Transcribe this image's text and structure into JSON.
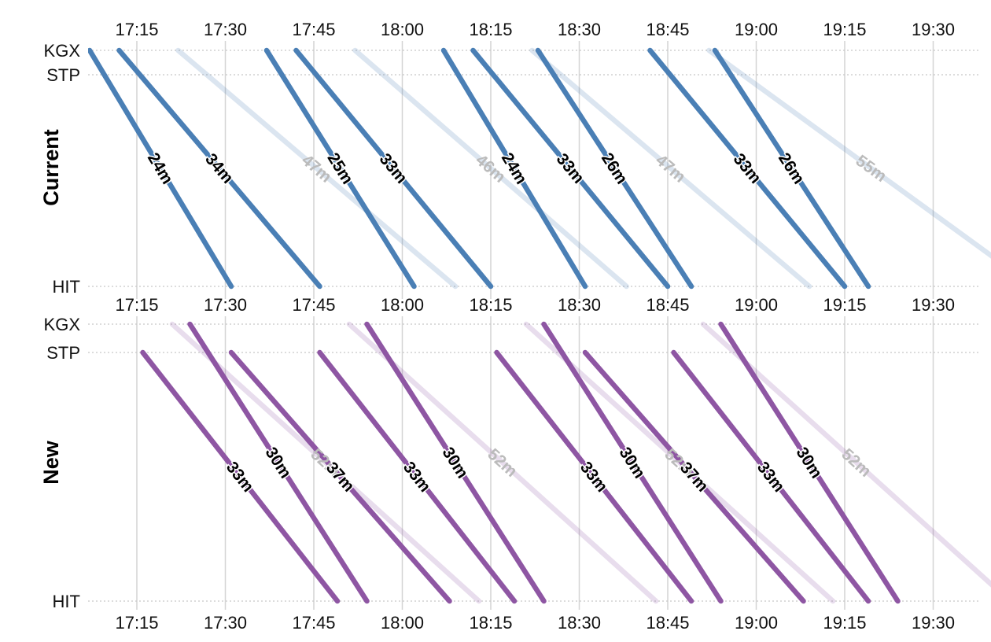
{
  "chart_data": [
    {
      "type": "line",
      "title": "Current",
      "color": "#4a7fb5",
      "label_color": "#000000",
      "faded_label_color": "#bbbbbb",
      "x_axis": {
        "ticks": [
          "17:15",
          "17:30",
          "17:45",
          "18:00",
          "18:15",
          "18:30",
          "18:45",
          "19:00",
          "19:15",
          "19:30"
        ],
        "range": [
          "17:07",
          "19:38"
        ],
        "grid": true
      },
      "stations": [
        "KGX",
        "STP",
        "HIT"
      ],
      "series": [
        {
          "depart": "17:07",
          "from": "KGX",
          "arrive": "17:31",
          "label": "24m",
          "faded": false
        },
        {
          "depart": "17:12",
          "from": "KGX",
          "arrive": "17:46",
          "label": "34m",
          "faded": false
        },
        {
          "depart": "17:22",
          "from": "KGX",
          "arrive": "18:09",
          "label": "47m",
          "faded": true
        },
        {
          "depart": "17:37",
          "from": "KGX",
          "arrive": "18:02",
          "label": "25m",
          "faded": false
        },
        {
          "depart": "17:42",
          "from": "KGX",
          "arrive": "18:15",
          "label": "33m",
          "faded": false
        },
        {
          "depart": "17:52",
          "from": "KGX",
          "arrive": "18:38",
          "label": "46m",
          "faded": true
        },
        {
          "depart": "18:07",
          "from": "KGX",
          "arrive": "18:31",
          "label": "24m",
          "faded": false
        },
        {
          "depart": "18:12",
          "from": "KGX",
          "arrive": "18:45",
          "label": "33m",
          "faded": false
        },
        {
          "depart": "18:23",
          "from": "KGX",
          "arrive": "18:49",
          "label": "26m",
          "faded": false
        },
        {
          "depart": "18:22",
          "from": "KGX",
          "arrive": "19:09",
          "label": "47m",
          "faded": true
        },
        {
          "depart": "18:42",
          "from": "KGX",
          "arrive": "19:15",
          "label": "33m",
          "faded": false
        },
        {
          "depart": "18:53",
          "from": "KGX",
          "arrive": "19:19",
          "label": "26m",
          "faded": false
        },
        {
          "depart": "18:52",
          "from": "KGX",
          "arrive": "19:47",
          "label": "55m",
          "faded": true
        }
      ]
    },
    {
      "type": "line",
      "title": "New",
      "color": "#8e56a3",
      "label_color": "#000000",
      "faded_label_color": "#bbbbbb",
      "x_axis": {
        "ticks": [
          "17:15",
          "17:30",
          "17:45",
          "18:00",
          "18:15",
          "18:30",
          "18:45",
          "19:00",
          "19:15",
          "19:30"
        ],
        "range": [
          "17:07",
          "19:38"
        ],
        "grid": true
      },
      "stations": [
        "KGX",
        "STP",
        "HIT"
      ],
      "series": [
        {
          "depart": "17:16",
          "from": "STP",
          "arrive": "17:49",
          "label": "33m",
          "faded": false
        },
        {
          "depart": "17:24",
          "from": "KGX",
          "arrive": "17:54",
          "label": "30m",
          "faded": false
        },
        {
          "depart": "17:21",
          "from": "KGX",
          "arrive": "18:13",
          "label": "52m",
          "faded": true
        },
        {
          "depart": "17:31",
          "from": "STP",
          "arrive": "18:08",
          "label": "37m",
          "faded": false
        },
        {
          "depart": "17:46",
          "from": "STP",
          "arrive": "18:19",
          "label": "33m",
          "faded": false
        },
        {
          "depart": "17:54",
          "from": "KGX",
          "arrive": "18:24",
          "label": "30m",
          "faded": false
        },
        {
          "depart": "17:51",
          "from": "KGX",
          "arrive": "18:43",
          "label": "52m",
          "faded": true
        },
        {
          "depart": "18:16",
          "from": "STP",
          "arrive": "18:49",
          "label": "33m",
          "faded": false
        },
        {
          "depart": "18:24",
          "from": "KGX",
          "arrive": "18:54",
          "label": "30m",
          "faded": false
        },
        {
          "depart": "18:21",
          "from": "KGX",
          "arrive": "19:13",
          "label": "52m",
          "faded": true
        },
        {
          "depart": "18:31",
          "from": "STP",
          "arrive": "19:08",
          "label": "37m",
          "faded": false
        },
        {
          "depart": "18:46",
          "from": "STP",
          "arrive": "19:19",
          "label": "33m",
          "faded": false
        },
        {
          "depart": "18:54",
          "from": "KGX",
          "arrive": "19:24",
          "label": "30m",
          "faded": false
        },
        {
          "depart": "18:51",
          "from": "KGX",
          "arrive": "19:43",
          "label": "52m",
          "faded": true
        }
      ]
    }
  ]
}
